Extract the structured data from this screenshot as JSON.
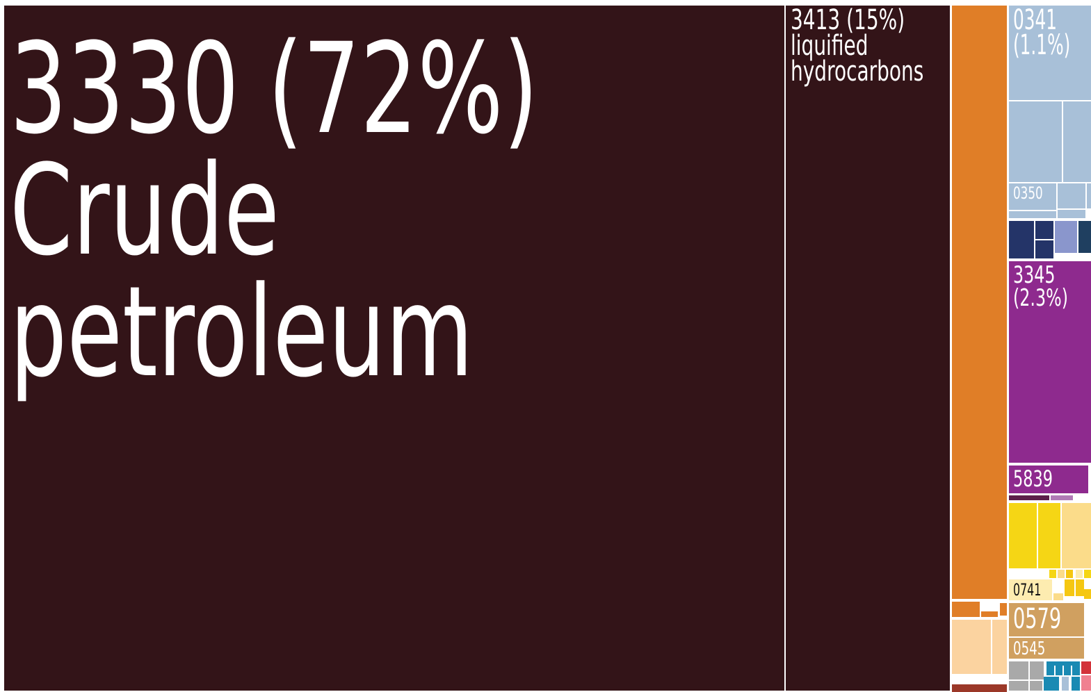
{
  "chart_data": {
    "type": "treemap",
    "cells": [
      {
        "code": "3330",
        "share": "72%",
        "name": "Crude petroleum",
        "color": "#331418",
        "text_color": "#ffffff"
      },
      {
        "code": "3413",
        "share": "15%",
        "name": "liquified hydrocarbons",
        "color": "#331418",
        "text_color": "#ffffff"
      },
      {
        "code": "",
        "share": "",
        "name": "",
        "color": "#e07e27"
      },
      {
        "code": "0341",
        "share": "1.1%",
        "name": "",
        "color": "#a8c0d8",
        "text_color": "#ffffff"
      },
      {
        "code": "",
        "share": "",
        "name": "",
        "color": "#a8c0d8"
      },
      {
        "code": "",
        "share": "",
        "name": "",
        "color": "#a8c0d8"
      },
      {
        "code": "0350",
        "share": "",
        "name": "",
        "color": "#a8c0d8",
        "text_color": "#ffffff"
      },
      {
        "code": "",
        "share": "",
        "name": "",
        "color": "#a8c0d8"
      },
      {
        "code": "",
        "share": "",
        "name": "",
        "color": "#a8c0d8"
      },
      {
        "code": "",
        "share": "",
        "name": "",
        "color": "#a8c0d8"
      },
      {
        "code": "",
        "share": "",
        "name": "",
        "color": "#a8c0d8"
      },
      {
        "code": "",
        "share": "",
        "name": "",
        "color": "#243468"
      },
      {
        "code": "",
        "share": "",
        "name": "",
        "color": "#243468"
      },
      {
        "code": "",
        "share": "",
        "name": "",
        "color": "#243468"
      },
      {
        "code": "",
        "share": "",
        "name": "",
        "color": "#8a96cc"
      },
      {
        "code": "",
        "share": "",
        "name": "",
        "color": "#1f3f60"
      },
      {
        "code": "3345",
        "share": "2.3%",
        "name": "",
        "color": "#8e2a8e",
        "text_color": "#ffffff"
      },
      {
        "code": "5839",
        "share": "",
        "name": "",
        "color": "#8e2a8e",
        "text_color": "#ffffff"
      },
      {
        "code": "",
        "share": "",
        "name": "",
        "color": "#5c1f4a"
      },
      {
        "code": "",
        "share": "",
        "name": "",
        "color": "#b07ab5"
      },
      {
        "code": "",
        "share": "",
        "name": "",
        "color": "#f5d615"
      },
      {
        "code": "",
        "share": "",
        "name": "",
        "color": "#f5d615"
      },
      {
        "code": "",
        "share": "",
        "name": "",
        "color": "#fbdc8a"
      },
      {
        "code": "0741",
        "share": "",
        "name": "",
        "color": "#fdecb0",
        "text_color": "#111111"
      },
      {
        "code": "",
        "share": "",
        "name": "",
        "color": "#f5c712"
      },
      {
        "code": "",
        "share": "",
        "name": "",
        "color": "#f5c712"
      },
      {
        "code": "0579",
        "share": "",
        "name": "",
        "color": "#d0a060",
        "text_color": "#ffffff"
      },
      {
        "code": "0545",
        "share": "",
        "name": "",
        "color": "#d0a060",
        "text_color": "#ffffff"
      },
      {
        "code": "",
        "share": "",
        "name": "",
        "color": "#e07e27"
      },
      {
        "code": "",
        "share": "",
        "name": "",
        "color": "#fbd3a0"
      },
      {
        "code": "",
        "share": "",
        "name": "",
        "color": "#fbd3a0"
      },
      {
        "code": "",
        "share": "",
        "name": "",
        "color": "#9b3828"
      },
      {
        "code": "",
        "share": "",
        "name": "",
        "color": "#a9a9a9"
      },
      {
        "code": "",
        "share": "",
        "name": "",
        "color": "#a9a9a9"
      },
      {
        "code": "",
        "share": "",
        "name": "",
        "color": "#1a8ab3"
      },
      {
        "code": "",
        "share": "",
        "name": "",
        "color": "#d3323a"
      },
      {
        "code": "",
        "share": "",
        "name": "",
        "color": "#f08090"
      }
    ]
  }
}
